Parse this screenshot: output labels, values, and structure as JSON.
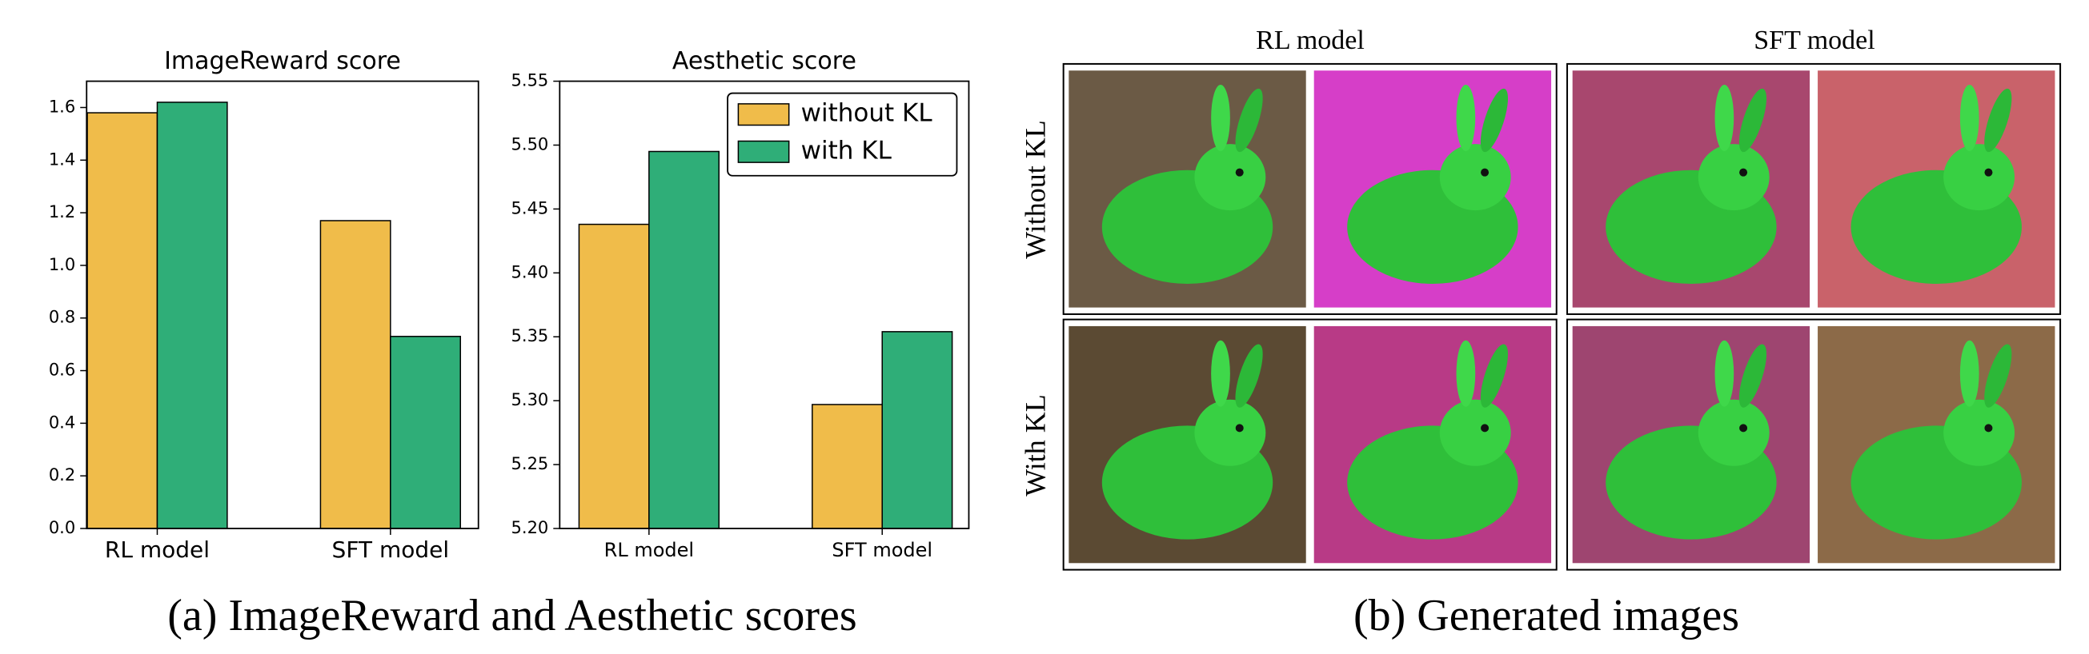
{
  "chart_data": [
    {
      "type": "bar",
      "title": "ImageReward score",
      "categories": [
        "RL model",
        "SFT model"
      ],
      "series": [
        {
          "color": "#f0bc4a",
          "values": [
            1.58,
            1.17
          ]
        },
        {
          "color": "#2fae78",
          "values": [
            1.62,
            0.73
          ]
        }
      ],
      "ylim": [
        0,
        1.7
      ],
      "yticks": [
        {
          "value": 0,
          "label": "0.0"
        },
        {
          "value": 0.2,
          "label": "0.2"
        },
        {
          "value": 0.4,
          "label": "0.4"
        },
        {
          "value": 0.6,
          "label": "0.6"
        },
        {
          "value": 0.8,
          "label": "0.8"
        },
        {
          "value": 1.0,
          "label": "1.0"
        },
        {
          "value": 1.2,
          "label": "1.2"
        },
        {
          "value": 1.4,
          "label": "1.4"
        },
        {
          "value": 1.6,
          "label": "1.6"
        }
      ]
    },
    {
      "type": "bar",
      "title": "Aesthetic score",
      "categories": [
        "RL model",
        "SFT model"
      ],
      "series": [
        {
          "name": "without KL",
          "color": "#f0bc4a",
          "values": [
            5.438,
            5.297
          ]
        },
        {
          "name": "with KL",
          "color": "#2fae78",
          "values": [
            5.495,
            5.354
          ]
        }
      ],
      "ylim": [
        5.2,
        5.55
      ],
      "yticks": [
        {
          "value": 5.2,
          "label": "5.20"
        },
        5.25,
        {
          "value": 5.3,
          "label": "5.30"
        },
        5.35,
        {
          "value": 5.4,
          "label": "5.40"
        },
        5.45,
        {
          "value": 5.5,
          "label": "5.50"
        },
        5.55
      ],
      "legend": "upper right"
    }
  ],
  "image_grid": {
    "column_labels": [
      "RL model",
      "SFT model"
    ],
    "row_labels": [
      "Without KL",
      "With KL"
    ]
  },
  "captions": [
    "(a) ImageReward and Aesthetic scores",
    "(b) Generated images"
  ]
}
